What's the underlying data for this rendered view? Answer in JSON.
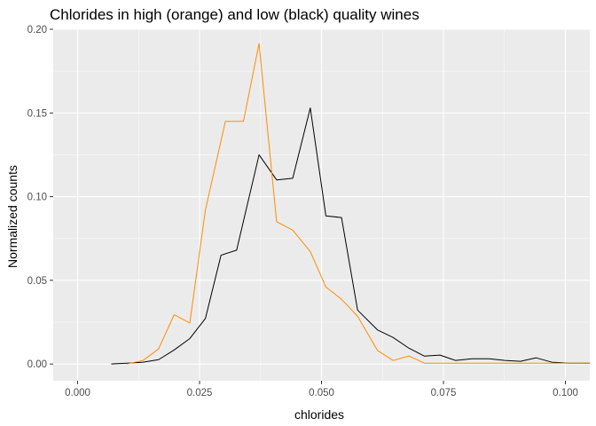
{
  "chart_data": {
    "type": "line",
    "title": "Chlorides in high (orange) and low (black) quality wines",
    "xlabel": "chlorides",
    "ylabel": "Normalized counts",
    "xlim": [
      -0.005,
      0.105
    ],
    "ylim": [
      -0.01,
      0.2
    ],
    "x_ticks": [
      0.0,
      0.025,
      0.05,
      0.075,
      0.1
    ],
    "x_tick_labels": [
      "0.000",
      "0.025",
      "0.050",
      "0.075",
      "0.100"
    ],
    "y_ticks": [
      0.0,
      0.05,
      0.1,
      0.15,
      0.2
    ],
    "y_tick_labels": [
      "0.00",
      "0.05",
      "0.10",
      "0.15",
      "0.20"
    ],
    "grid": true,
    "legend": "none",
    "background": "#ebebeb",
    "gridline_color": "#ffffff",
    "series": [
      {
        "color": "#000000",
        "points": [
          [
            0.0069,
            0.0
          ],
          [
            0.0101,
            0.0005
          ],
          [
            0.0134,
            0.0011
          ],
          [
            0.0166,
            0.0026
          ],
          [
            0.0198,
            0.0084
          ],
          [
            0.023,
            0.0152
          ],
          [
            0.0262,
            0.0272
          ],
          [
            0.0294,
            0.065
          ],
          [
            0.0326,
            0.068
          ],
          [
            0.0372,
            0.125
          ],
          [
            0.0408,
            0.11
          ],
          [
            0.0441,
            0.111
          ],
          [
            0.0477,
            0.153
          ],
          [
            0.0509,
            0.0885
          ],
          [
            0.0541,
            0.0875
          ],
          [
            0.0574,
            0.0322
          ],
          [
            0.0615,
            0.0203
          ],
          [
            0.0647,
            0.0158
          ],
          [
            0.0679,
            0.0095
          ],
          [
            0.0711,
            0.0047
          ],
          [
            0.0743,
            0.0053
          ],
          [
            0.0775,
            0.0021
          ],
          [
            0.0808,
            0.0031
          ],
          [
            0.0844,
            0.0031
          ],
          [
            0.0876,
            0.0021
          ],
          [
            0.0908,
            0.0016
          ],
          [
            0.094,
            0.0037
          ],
          [
            0.0972,
            0.0011
          ],
          [
            0.1005,
            0.0005
          ],
          [
            0.105,
            0.0005
          ]
        ]
      },
      {
        "color": "#ff8c00",
        "points": [
          [
            0.0101,
            0.0
          ],
          [
            0.0134,
            0.0021
          ],
          [
            0.0166,
            0.009
          ],
          [
            0.0198,
            0.0295
          ],
          [
            0.023,
            0.0245
          ],
          [
            0.0262,
            0.092
          ],
          [
            0.0303,
            0.145
          ],
          [
            0.034,
            0.145
          ],
          [
            0.0372,
            0.1915
          ],
          [
            0.0408,
            0.085
          ],
          [
            0.0441,
            0.08
          ],
          [
            0.0477,
            0.0672
          ],
          [
            0.0509,
            0.046
          ],
          [
            0.0541,
            0.0387
          ],
          [
            0.0574,
            0.0285
          ],
          [
            0.0615,
            0.008
          ],
          [
            0.0647,
            0.0021
          ],
          [
            0.0679,
            0.0048
          ],
          [
            0.0711,
            0.0005
          ],
          [
            0.0743,
            0.0005
          ],
          [
            0.0775,
            0.0005
          ],
          [
            0.0808,
            0.0005
          ],
          [
            0.0844,
            0.0005
          ],
          [
            0.0876,
            0.0005
          ],
          [
            0.0908,
            0.0005
          ],
          [
            0.094,
            0.0005
          ],
          [
            0.0972,
            0.0005
          ],
          [
            0.1005,
            0.0005
          ],
          [
            0.105,
            0.0005
          ]
        ]
      }
    ]
  }
}
